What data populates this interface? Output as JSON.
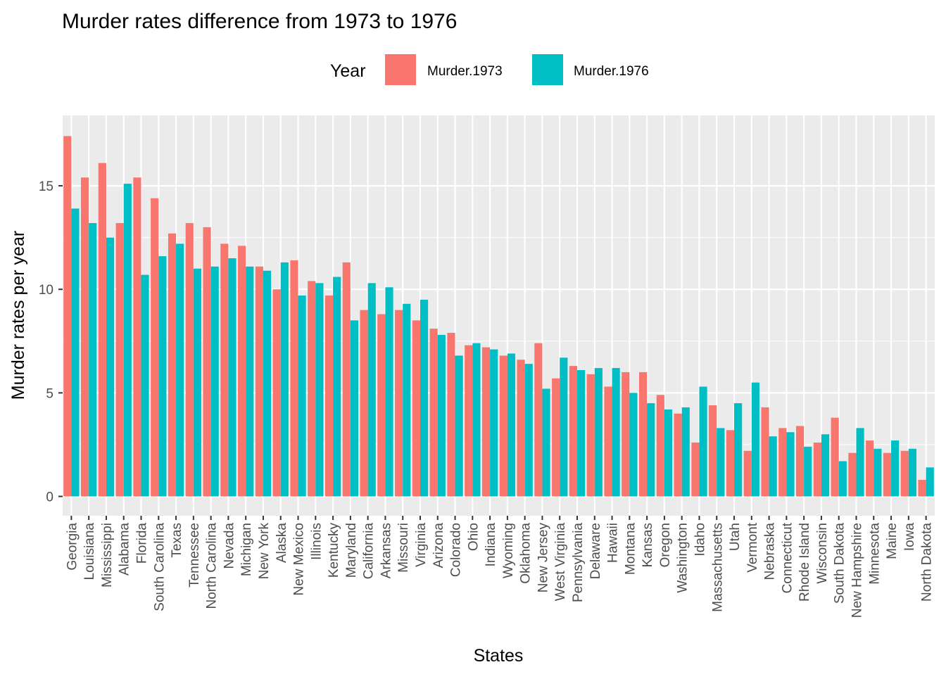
{
  "chart_data": {
    "type": "bar",
    "title": "Murder rates difference from 1973 to 1976",
    "xlabel": "States",
    "ylabel": "Murder rates per year",
    "ylim": [
      0,
      17.5
    ],
    "yticks": [
      0,
      5,
      10,
      15
    ],
    "legend": {
      "title": "Year",
      "placement": "top"
    },
    "categories": [
      "Georgia",
      "Louisiana",
      "Mississippi",
      "Alabama",
      "Florida",
      "South Carolina",
      "Texas",
      "Tennessee",
      "North Carolina",
      "Nevada",
      "Michigan",
      "New York",
      "Alaska",
      "New Mexico",
      "Illinois",
      "Kentucky",
      "Maryland",
      "California",
      "Arkansas",
      "Missouri",
      "Virginia",
      "Arizona",
      "Colorado",
      "Ohio",
      "Indiana",
      "Wyoming",
      "Oklahoma",
      "New Jersey",
      "West Virginia",
      "Pennsylvania",
      "Delaware",
      "Hawaii",
      "Montana",
      "Kansas",
      "Oregon",
      "Washington",
      "Idaho",
      "Massachusetts",
      "Utah",
      "Vermont",
      "Nebraska",
      "Connecticut",
      "Rhode Island",
      "Wisconsin",
      "South Dakota",
      "New Hampshire",
      "Minnesota",
      "Maine",
      "Iowa",
      "North Dakota"
    ],
    "series": [
      {
        "name": "Murder.1973",
        "color": "#F8766D",
        "values": [
          17.4,
          15.4,
          16.1,
          13.2,
          15.4,
          14.4,
          12.7,
          13.2,
          13.0,
          12.2,
          12.1,
          11.1,
          10.0,
          11.4,
          10.4,
          9.7,
          11.3,
          9.0,
          8.8,
          9.0,
          8.5,
          8.1,
          7.9,
          7.3,
          7.2,
          6.8,
          6.6,
          7.4,
          5.7,
          6.3,
          5.9,
          5.3,
          6.0,
          6.0,
          4.9,
          4.0,
          2.6,
          4.4,
          3.2,
          2.2,
          4.3,
          3.3,
          3.4,
          2.6,
          3.8,
          2.1,
          2.7,
          2.1,
          2.2,
          0.8
        ]
      },
      {
        "name": "Murder.1976",
        "color": "#00BFC4",
        "values": [
          13.9,
          13.2,
          12.5,
          15.1,
          10.7,
          11.6,
          12.2,
          11.0,
          11.1,
          11.5,
          11.1,
          10.9,
          11.3,
          9.7,
          10.3,
          10.6,
          8.5,
          10.3,
          10.1,
          9.3,
          9.5,
          7.8,
          6.8,
          7.4,
          7.1,
          6.9,
          6.4,
          5.2,
          6.7,
          6.1,
          6.2,
          6.2,
          5.0,
          4.5,
          4.2,
          4.3,
          5.3,
          3.3,
          4.5,
          5.5,
          2.9,
          3.1,
          2.4,
          3.0,
          1.7,
          3.3,
          2.3,
          2.7,
          2.3,
          1.4
        ]
      }
    ]
  }
}
